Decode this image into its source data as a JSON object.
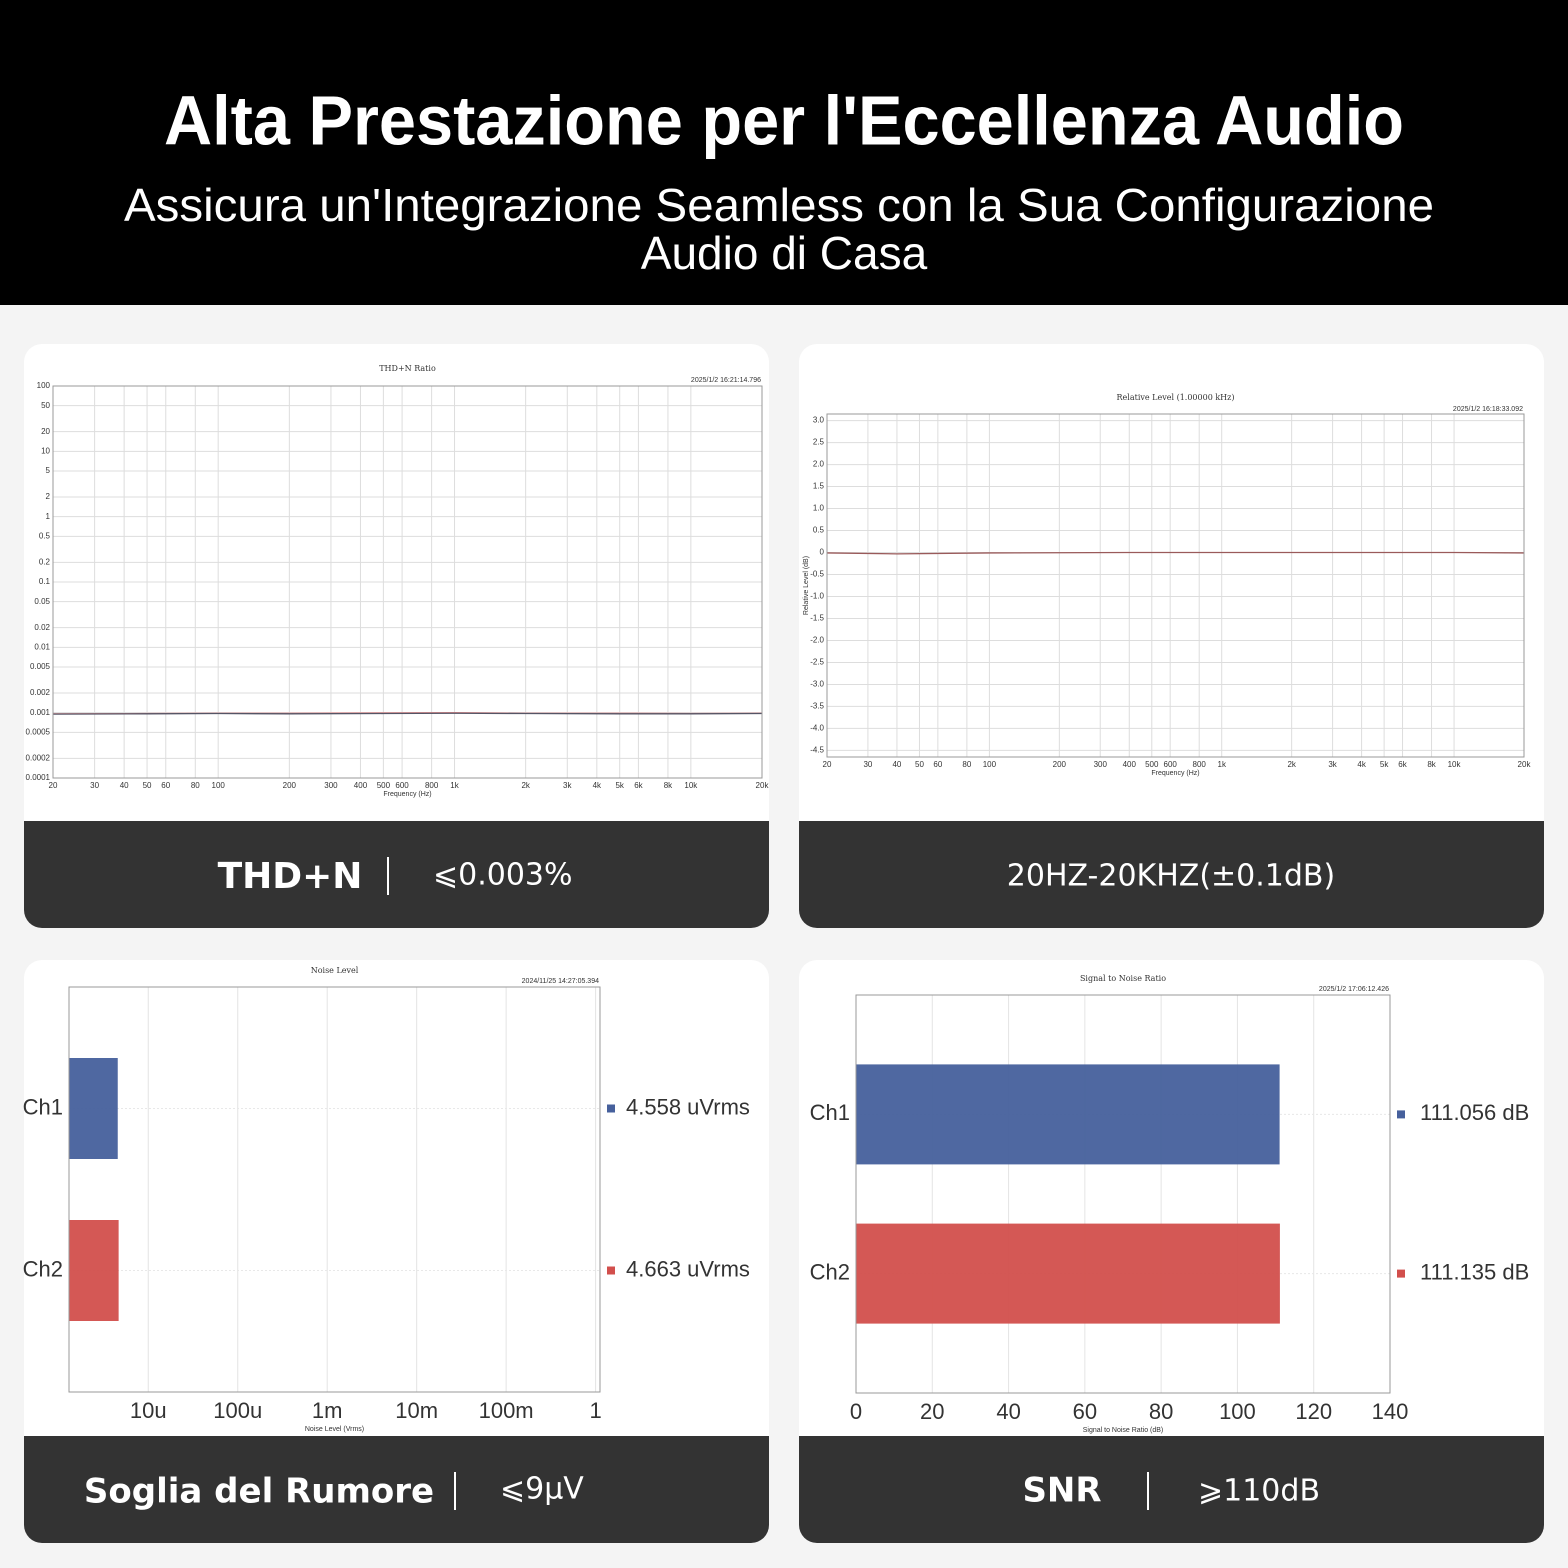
{
  "header": {
    "title": "Alta Prestazione per l'Eccellenza Audio",
    "subtitle": [
      "Assicura un'Integrazione Seamless con la Sua Configurazione",
      "Audio di Casa"
    ]
  },
  "chart_data": [
    {
      "type": "line",
      "title": "THD+N Ratio",
      "timestamp": "2025/1/2 16:21:14.796",
      "x_label": "Frequency (Hz)",
      "xscale": "log",
      "yscale": "log",
      "grid": true,
      "xlim": [
        20,
        20000
      ],
      "ylim": [
        0.0001,
        100
      ],
      "xticks": [
        20,
        30,
        40,
        50,
        60,
        80,
        100,
        200,
        300,
        400,
        500,
        600,
        800,
        {
          "value": 1000,
          "label": "1k"
        },
        {
          "value": 2000,
          "label": "2k"
        },
        {
          "value": 3000,
          "label": "3k"
        },
        {
          "value": 4000,
          "label": "4k"
        },
        {
          "value": 5000,
          "label": "5k"
        },
        {
          "value": 6000,
          "label": "6k"
        },
        {
          "value": 8000,
          "label": "8k"
        },
        {
          "value": 10000,
          "label": "10k"
        },
        {
          "value": 20000,
          "label": "20k"
        }
      ],
      "yticks": [
        100,
        50,
        20,
        10,
        5,
        2,
        1,
        0.5,
        0.2,
        0.1,
        0.05,
        0.02,
        0.01,
        0.005,
        0.002,
        0.001,
        0.0005,
        0.0002,
        0.0001
      ],
      "x": [
        20,
        50,
        100,
        200,
        500,
        1000,
        2000,
        5000,
        10000,
        20000
      ],
      "series": [
        {
          "color": "#e08a8a",
          "values": [
            0.00096,
            0.00097,
            0.00098,
            0.00098,
            0.00099,
            0.001,
            0.00098,
            0.00098,
            0.00097,
            0.00098
          ]
        },
        {
          "color": "#555566",
          "values": [
            0.00095,
            0.00096,
            0.00097,
            0.00096,
            0.00097,
            0.00098,
            0.00097,
            0.00096,
            0.00096,
            0.00097
          ]
        }
      ]
    },
    {
      "type": "line",
      "title": "Relative Level (1.00000 kHz)",
      "timestamp": "2025/1/2 16:18:33.092",
      "x_label": "Frequency (Hz)",
      "y_label": "Relative Level (dB)",
      "xscale": "log",
      "grid": true,
      "xlim": [
        20,
        20000
      ],
      "ylim": [
        -4.65,
        3.15
      ],
      "xticks": [
        20,
        30,
        40,
        50,
        60,
        80,
        100,
        200,
        300,
        400,
        500,
        600,
        800,
        {
          "value": 1000,
          "label": "1k"
        },
        {
          "value": 2000,
          "label": "2k"
        },
        {
          "value": 3000,
          "label": "3k"
        },
        {
          "value": 4000,
          "label": "4k"
        },
        {
          "value": 5000,
          "label": "5k"
        },
        {
          "value": 6000,
          "label": "6k"
        },
        {
          "value": 8000,
          "label": "8k"
        },
        {
          "value": 10000,
          "label": "10k"
        },
        {
          "value": 20000,
          "label": "20k"
        }
      ],
      "yticks": [
        {
          "value": 3,
          "label": "3.0"
        },
        2.5,
        {
          "value": 2,
          "label": "2.0"
        },
        1.5,
        {
          "value": 1,
          "label": "1.0"
        },
        0.5,
        0,
        -0.5,
        {
          "value": -1,
          "label": "-1.0"
        },
        -1.5,
        {
          "value": -2,
          "label": "-2.0"
        },
        -2.5,
        {
          "value": -3,
          "label": "-3.0"
        },
        -3.5,
        {
          "value": -4,
          "label": "-4.0"
        },
        -4.5
      ],
      "x": [
        20,
        40,
        100,
        400,
        1000,
        5000,
        10000,
        20000
      ],
      "series": [
        {
          "color": "#9a5a5a",
          "values": [
            -0.01,
            -0.03,
            -0.01,
            0.0,
            0.0,
            0.0,
            0.0,
            -0.01
          ]
        }
      ]
    },
    {
      "type": "bar",
      "orientation": "horizontal",
      "title": "Noise Level",
      "timestamp": "2024/11/25 14:27:05.394",
      "x_label": "Noise Level (Vrms)",
      "xscale": "log",
      "grid": true,
      "xlim": [
        1.3e-06,
        1.12
      ],
      "xticks": [
        {
          "value": 1e-05,
          "label": "10u"
        },
        {
          "value": 0.0001,
          "label": "100u"
        },
        {
          "value": 0.001,
          "label": "1m"
        },
        {
          "value": 0.01,
          "label": "10m"
        },
        {
          "value": 0.1,
          "label": "100m"
        },
        1
      ],
      "categories": [
        "Ch1",
        "Ch2"
      ],
      "colors": [
        "#46609c",
        "#d24f4c"
      ],
      "values": [
        4.558e-06,
        4.663e-06
      ],
      "value_labels": [
        "4.558 uVrms",
        "4.663 uVrms"
      ]
    },
    {
      "type": "bar",
      "orientation": "horizontal",
      "title": "Signal to Noise Ratio",
      "timestamp": "2025/1/2 17:06:12.426",
      "x_label": "Signal to Noise Ratio (dB)",
      "grid": true,
      "xlim": [
        0,
        140
      ],
      "xticks": [
        0,
        20,
        40,
        60,
        80,
        100,
        120,
        140
      ],
      "categories": [
        "Ch1",
        "Ch2"
      ],
      "colors": [
        "#46609c",
        "#d24f4c"
      ],
      "values": [
        111.056,
        111.135
      ],
      "value_labels": [
        "111.056 dB",
        "111.135 dB"
      ]
    }
  ],
  "panels": [
    {
      "label": "THD+N",
      "value": "⩽0.003%"
    },
    {
      "label": "20HZ-20KHZ(±0.1dB)"
    },
    {
      "label": "Soglia del Rumore",
      "value": "⩽9μV"
    },
    {
      "label": "SNR",
      "value": "⩾110dB"
    }
  ]
}
